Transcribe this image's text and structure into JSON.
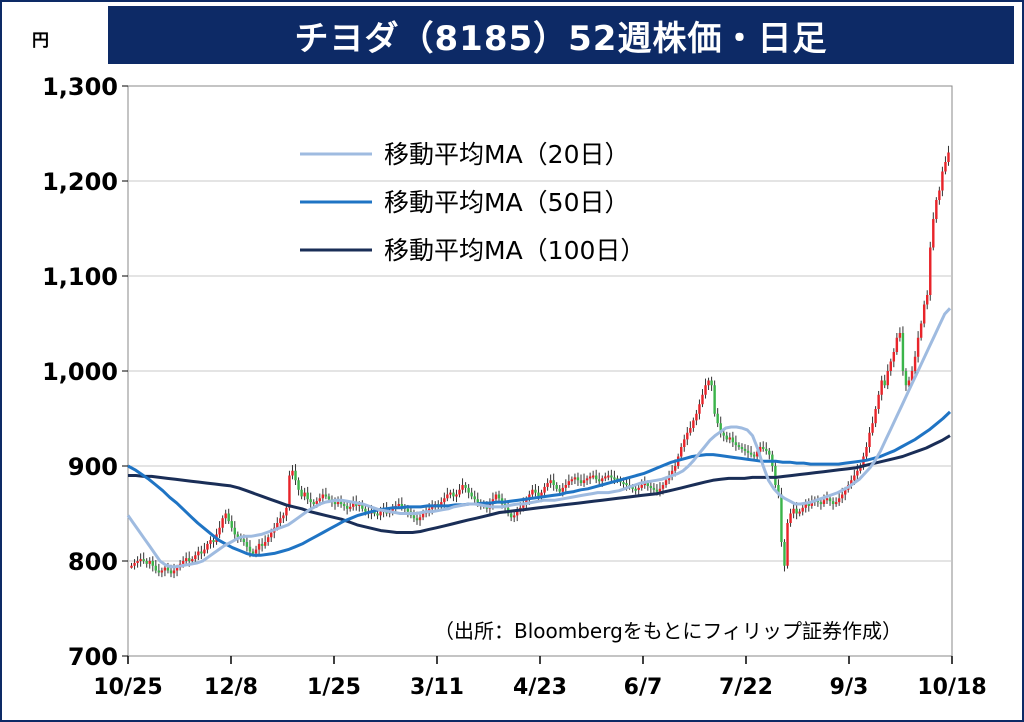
{
  "title": "チヨダ（8185）52週株価・日足",
  "unit": "円",
  "source": "（出所：Bloombergをもとにフィリップ証券作成）",
  "colors": {
    "frame": "#0d2a66",
    "up": "#e8242a",
    "down": "#3bb44a",
    "ma20": "#9fbbe0",
    "ma50": "#1f74c4",
    "ma100": "#1a2e57",
    "grid": "#c8c8c8"
  },
  "chart_data": {
    "type": "candlestick",
    "ylim": [
      700,
      1300
    ],
    "yticks": [
      "1,300",
      "1,200",
      "1,100",
      "1,000",
      "900",
      "800",
      "700"
    ],
    "yvalues": [
      1300,
      1200,
      1100,
      1000,
      900,
      800,
      700
    ],
    "xticks": [
      "10/25",
      "12/8",
      "1/25",
      "3/11",
      "4/23",
      "6/7",
      "7/22",
      "9/3",
      "10/18"
    ],
    "grid": true,
    "legend_position": "top-left",
    "legend": [
      "移動平均MA（20日）",
      "移動平均MA（50日）",
      "移動平均MA（100日）"
    ],
    "closes": [
      795,
      798,
      800,
      802,
      800,
      797,
      800,
      795,
      790,
      788,
      790,
      793,
      790,
      787,
      790,
      793,
      797,
      800,
      803,
      800,
      802,
      806,
      810,
      808,
      812,
      818,
      822,
      820,
      828,
      835,
      845,
      850,
      842,
      835,
      828,
      825,
      823,
      820,
      815,
      810,
      808,
      812,
      818,
      816,
      820,
      825,
      830,
      835,
      840,
      845,
      848,
      856,
      890,
      895,
      885,
      875,
      868,
      872,
      865,
      862,
      860,
      863,
      866,
      870,
      868,
      865,
      862,
      860,
      862,
      860,
      858,
      855,
      857,
      862,
      858,
      860,
      855,
      852,
      850,
      852,
      850,
      848,
      852,
      855,
      850,
      853,
      856,
      858,
      860,
      857,
      855,
      852,
      848,
      845,
      843,
      846,
      850,
      852,
      855,
      857,
      860,
      858,
      862,
      866,
      870,
      872,
      868,
      870,
      875,
      880,
      877,
      872,
      868,
      865,
      862,
      860,
      858,
      855,
      860,
      865,
      870,
      866,
      860,
      856,
      850,
      846,
      848,
      852,
      856,
      860,
      865,
      870,
      875,
      872,
      868,
      872,
      878,
      882,
      885,
      880,
      876,
      873,
      877,
      880,
      884,
      886,
      888,
      885,
      882,
      885,
      887,
      889,
      890,
      886,
      884,
      887,
      889,
      890,
      888,
      887,
      885,
      883,
      882,
      880,
      878,
      876,
      875,
      877,
      880,
      882,
      879,
      877,
      875,
      873,
      876,
      880,
      885,
      890,
      895,
      900,
      910,
      920,
      928,
      935,
      940,
      948,
      955,
      965,
      975,
      985,
      990,
      985,
      955,
      945,
      935,
      932,
      928,
      930,
      925,
      922,
      920,
      918,
      916,
      914,
      912,
      910,
      915,
      920,
      918,
      916,
      912,
      900,
      880,
      870,
      820,
      795,
      840,
      850,
      855,
      850,
      852,
      856,
      860,
      858,
      862,
      865,
      862,
      860,
      864,
      866,
      863,
      860,
      862,
      866,
      870,
      875,
      880,
      885,
      890,
      895,
      900,
      910,
      920,
      935,
      945,
      960,
      975,
      990,
      985,
      1000,
      1010,
      1020,
      1035,
      1040,
      1000,
      985,
      990,
      1000,
      1015,
      1035,
      1050,
      1070,
      1080,
      1130,
      1160,
      1180,
      1190,
      1210,
      1220,
      1230
    ],
    "ma20": [
      848,
      840,
      832,
      824,
      816,
      808,
      800,
      796,
      794,
      794,
      795,
      796,
      797,
      798,
      800,
      804,
      808,
      812,
      816,
      819,
      822,
      825,
      826,
      826,
      827,
      828,
      830,
      832,
      834,
      836,
      838,
      842,
      846,
      850,
      854,
      857,
      860,
      862,
      863,
      864,
      864,
      863,
      862,
      861,
      860,
      858,
      856,
      854,
      853,
      852,
      851,
      850,
      850,
      850,
      850,
      851,
      852,
      852,
      853,
      854,
      855,
      857,
      858,
      859,
      860,
      860,
      859,
      858,
      857,
      857,
      857,
      858,
      859,
      860,
      860,
      861,
      862,
      863,
      864,
      864,
      864,
      865,
      866,
      867,
      868,
      869,
      870,
      871,
      872,
      872,
      872,
      873,
      874,
      876,
      878,
      880,
      882,
      883,
      884,
      885,
      886,
      888,
      890,
      892,
      895,
      900,
      906,
      913,
      920,
      927,
      932,
      936,
      940,
      941,
      941,
      940,
      938,
      932,
      918,
      900,
      885,
      876,
      870,
      866,
      863,
      860,
      860,
      861,
      862,
      864,
      866,
      868,
      870,
      872,
      875,
      878,
      882,
      886,
      892,
      898,
      906,
      916,
      928,
      940,
      952,
      964,
      976,
      988,
      1000,
      1012,
      1024,
      1036,
      1048,
      1060,
      1066
    ],
    "ma50": [
      900,
      896,
      891,
      886,
      880,
      874,
      867,
      861,
      854,
      847,
      840,
      834,
      828,
      822,
      818,
      814,
      811,
      808,
      806,
      806,
      807,
      808,
      810,
      812,
      815,
      818,
      822,
      826,
      830,
      834,
      838,
      842,
      845,
      848,
      850,
      852,
      854,
      855,
      856,
      856,
      857,
      857,
      857,
      858,
      858,
      858,
      858,
      859,
      859,
      860,
      860,
      861,
      861,
      862,
      862,
      863,
      864,
      865,
      866,
      867,
      868,
      869,
      870,
      872,
      873,
      875,
      876,
      878,
      880,
      882,
      884,
      886,
      888,
      890,
      892,
      895,
      898,
      901,
      904,
      906,
      908,
      910,
      911,
      912,
      912,
      911,
      910,
      909,
      908,
      907,
      906,
      905,
      905,
      905,
      904,
      904,
      903,
      903,
      902,
      902,
      902,
      902,
      902,
      903,
      904,
      905,
      906,
      908,
      910,
      913,
      916,
      920,
      924,
      928,
      933,
      938,
      944,
      950,
      957
    ],
    "ma100": [
      890,
      890,
      889,
      889,
      888,
      887,
      886,
      885,
      884,
      883,
      882,
      881,
      880,
      879,
      877,
      874,
      871,
      868,
      865,
      862,
      859,
      857,
      855,
      852,
      850,
      848,
      846,
      844,
      841,
      838,
      836,
      834,
      832,
      831,
      830,
      830,
      830,
      831,
      833,
      835,
      837,
      839,
      841,
      843,
      845,
      847,
      849,
      851,
      852,
      853,
      854,
      855,
      856,
      857,
      858,
      859,
      860,
      861,
      862,
      863,
      864,
      865,
      866,
      867,
      868,
      869,
      870,
      871,
      873,
      875,
      877,
      879,
      881,
      883,
      885,
      886,
      887,
      887,
      887,
      888,
      888,
      888,
      888,
      889,
      890,
      891,
      892,
      893,
      894,
      895,
      896,
      897,
      898,
      900,
      902,
      904,
      906,
      908,
      910,
      913,
      916,
      919,
      923,
      927,
      932
    ]
  }
}
